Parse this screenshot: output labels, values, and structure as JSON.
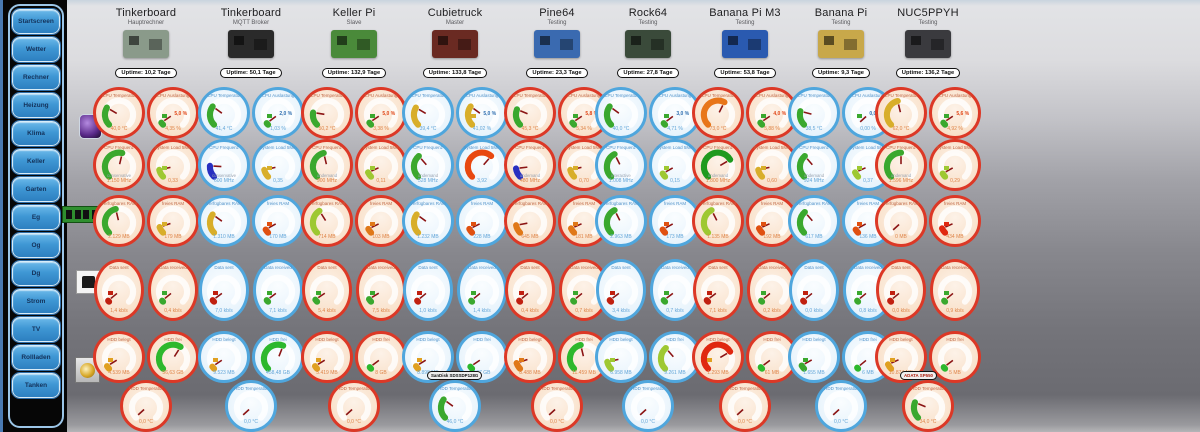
{
  "palette": {
    "accent_red": "#dc3826",
    "accent_blue": "#4fa6dd",
    "green": "#3aa82e",
    "yellowgreen": "#9ec832",
    "gold": "#d8ae2a",
    "orange": "#e07818",
    "orange_red": "#e84810",
    "red": "#e02810",
    "dark_blue": "#2830c0"
  },
  "sidebar": {
    "items": [
      "Startscreen",
      "Wetter",
      "Rechner",
      "Heizung",
      "Klima",
      "Keller",
      "Garten",
      "Eg",
      "Og",
      "Dg",
      "Strom",
      "TV",
      "Rollladen",
      "Tanken"
    ]
  },
  "left_icons": [
    {
      "name": "cpu-icon"
    },
    {
      "name": "ram-icon"
    },
    {
      "name": "network-icon"
    },
    {
      "name": "hdd-icon"
    }
  ],
  "columns": [
    {
      "name": "Tinkerboard",
      "subtitle": "Hauptrechner",
      "uptime": "Uptime: 10,2 Tage",
      "accent": "red",
      "board_color": "#8a9a8a",
      "badge": null,
      "gauges": [
        {
          "label": "CPU Temperatur",
          "value": "40,0 °C",
          "frac": 0.28,
          "color": "#3aa82e"
        },
        {
          "label": "CPU Auslastung",
          "mid": "5,0 %",
          "value": "4,35 %",
          "frac": 0.04,
          "color": "#3aa82e",
          "icon": "#3aa82e"
        },
        {
          "label": "CPU Frequenz",
          "sub": "conservative",
          "value": "1.150 MHz",
          "frac": 0.55,
          "color": "#3aa82e"
        },
        {
          "label": "System Load 5Min",
          "value": "0,33",
          "frac": 0.12,
          "color": "#9ec832",
          "icon": "#9ec832"
        },
        {
          "label": "Verfügbares RAM",
          "value": "2.129 MB",
          "frac": 0.45,
          "color": "#3aa82e"
        },
        {
          "label": "freies RAM",
          "value": "179 MB",
          "frac": 0.1,
          "color": "#d8ae2a",
          "icon": "#d8ae2a"
        },
        {
          "label": "Data sent",
          "value": "1,4 kb/s",
          "frac": 0.02,
          "color": "#c02010",
          "icon": "#c02010"
        },
        {
          "label": "Data received",
          "value": "0,4 kb/s",
          "frac": 0.02,
          "color": "#3aa82e",
          "icon": "#3aa82e"
        },
        {
          "label": "HDD belegt",
          "value": "4.539 MB",
          "frac": 0.05,
          "color": "#e0a020",
          "icon": "#e0a020"
        },
        {
          "label": "HDD frei",
          "value": "56,63 GB",
          "frac": 0.62,
          "color": "#2db82d"
        },
        {
          "label": "HDD Temperatur",
          "value": "0,0 °C",
          "frac": 0.01,
          "color": "#3aa82e"
        }
      ]
    },
    {
      "name": "Tinkerboard",
      "subtitle": "MQTT Broker",
      "uptime": "Uptime: 50,1 Tage",
      "accent": "blue",
      "board_color": "#2a2a2a",
      "badge": null,
      "gauges": [
        {
          "label": "CPU Temperatur",
          "value": "41,4 °C",
          "frac": 0.3,
          "color": "#3aa82e"
        },
        {
          "label": "CPU Auslastung",
          "mid": "2,0 %",
          "value": "1,03 %",
          "frac": 0.03,
          "color": "#3aa82e",
          "icon": "#3aa82e"
        },
        {
          "label": "CPU Frequenz",
          "sub": "conservative",
          "value": "600 MHz",
          "frac": 0.18,
          "color": "#2830c0"
        },
        {
          "label": "System Load 5Min",
          "value": "0,35",
          "frac": 0.12,
          "color": "#d8ae2a",
          "icon": "#d8ae2a"
        },
        {
          "label": "Verfügbares RAM",
          "value": "1.310 MB",
          "frac": 0.3,
          "color": "#d8ae2a"
        },
        {
          "label": "freies RAM",
          "value": "170 MB",
          "frac": 0.06,
          "color": "#e05010",
          "icon": "#e05010"
        },
        {
          "label": "Data sent",
          "value": "7,0 kb/s",
          "frac": 0.03,
          "color": "#c02010",
          "icon": "#c02010"
        },
        {
          "label": "Data received",
          "value": "7,1 kb/s",
          "frac": 0.03,
          "color": "#3aa82e",
          "icon": "#3aa82e"
        },
        {
          "label": "HDD belegt",
          "value": "9.523 MB",
          "frac": 0.04,
          "color": "#e0a020",
          "icon": "#e0a020"
        },
        {
          "label": "HDD frei",
          "value": "458,48 GB",
          "frac": 0.58,
          "color": "#2db82d"
        },
        {
          "label": "HDD Temperatur",
          "value": "0,0 °C",
          "frac": 0.01,
          "color": "#3aa82e"
        }
      ]
    },
    {
      "name": "Keller Pi",
      "subtitle": "Slave",
      "uptime": "Uptime: 132,9 Tage",
      "accent": "red",
      "board_color": "#4a8a3a",
      "badge": null,
      "gauges": [
        {
          "label": "CPU Temperatur",
          "value": "50,2 °C",
          "frac": 0.2,
          "color": "#3aa82e"
        },
        {
          "label": "CPU Auslastung",
          "mid": "5,0 %",
          "value": "3,38 %",
          "frac": 0.04,
          "color": "#3aa82e",
          "icon": "#3aa82e"
        },
        {
          "label": "CPU Frequenz",
          "sub": "ondemand",
          "value": "900 MHz",
          "frac": 0.45,
          "color": "#3aa82e"
        },
        {
          "label": "System Load 5Min",
          "value": "0,11",
          "frac": 0.08,
          "color": "#9ec832",
          "icon": "#9ec832"
        },
        {
          "label": "Verfügbares RAM",
          "value": "714 MB",
          "frac": 0.38,
          "color": "#9ec832"
        },
        {
          "label": "freies RAM",
          "value": "103 MB",
          "frac": 0.07,
          "color": "#e07818",
          "icon": "#e07818"
        },
        {
          "label": "Data sent",
          "value": "5,4 kb/s",
          "frac": 0.04,
          "color": "#3aa82e",
          "icon": "#3aa82e"
        },
        {
          "label": "Data received",
          "value": "7,5 kb/s",
          "frac": 0.05,
          "color": "#3aa82e",
          "icon": "#3aa82e"
        },
        {
          "label": "HDD belegt",
          "value": "5.419 MB",
          "frac": 0.05,
          "color": "#e0a020",
          "icon": "#e0a020"
        },
        {
          "label": "HDD frei",
          "value": "8 GB",
          "frac": 0.03,
          "color": "#2db82d"
        },
        {
          "label": "HDD Temperatur",
          "value": "0,0 °C",
          "frac": 0.01,
          "color": "#3aa82e"
        }
      ]
    },
    {
      "name": "Cubietruck",
      "subtitle": "Master",
      "uptime": "Uptime: 133,8 Tage",
      "accent": "blue",
      "board_color": "#6a2a22",
      "badge": "SanDisk SDSSDP128G",
      "gauges": [
        {
          "label": "CPU Temperatur",
          "value": "39,4 °C",
          "frac": 0.28,
          "color": "#d8ae2a"
        },
        {
          "label": "CPU Auslastung",
          "mid": "5,0 %",
          "value": "41,02 %",
          "frac": 0.3,
          "color": "#d8ae2a",
          "icon": "#d8ae2a"
        },
        {
          "label": "CPU Frequenz",
          "sub": "ondemand",
          "value": "528 MHz",
          "frac": 0.35,
          "color": "#3aa82e"
        },
        {
          "label": "System Load 5Min",
          "value": "3,92",
          "frac": 0.65,
          "color": "#e84810"
        },
        {
          "label": "Verfügbares RAM",
          "value": "1.232 MB",
          "frac": 0.3,
          "color": "#d8ae2a"
        },
        {
          "label": "freies RAM",
          "value": "228 MB",
          "frac": 0.07,
          "color": "#e05010",
          "icon": "#e05010"
        },
        {
          "label": "Data sent",
          "value": "1,0 kb/s",
          "frac": 0.02,
          "color": "#c02010",
          "icon": "#c02010"
        },
        {
          "label": "Data received",
          "value": "1,4 kb/s",
          "frac": 0.02,
          "color": "#3aa82e",
          "icon": "#3aa82e"
        },
        {
          "label": "HDD belegt",
          "value": "8.898 MB",
          "frac": 0.05,
          "color": "#e0a020",
          "icon": "#e0a020"
        },
        {
          "label": "HDD frei",
          "value": "107 GB",
          "frac": 0.04,
          "color": "#2db82d"
        },
        {
          "label": "HDD Temperatur",
          "value": "46,0 °C",
          "frac": 0.3,
          "color": "#3aa82e"
        }
      ]
    },
    {
      "name": "Pine64",
      "subtitle": "Testing",
      "uptime": "Uptime: 23,3 Tage",
      "accent": "red",
      "board_color": "#3a6ab0",
      "badge": null,
      "gauges": [
        {
          "label": "CPU Temperatur",
          "value": "45,3 °C",
          "frac": 0.25,
          "color": "#3aa82e"
        },
        {
          "label": "CPU Auslastung",
          "mid": "5,8 %",
          "value": "5,34 %",
          "frac": 0.04,
          "color": "#3aa82e",
          "icon": "#3aa82e"
        },
        {
          "label": "CPU Frequenz",
          "sub": "ondemand",
          "value": "480 MHz",
          "frac": 0.14,
          "color": "#2830c0"
        },
        {
          "label": "System Load 5Min",
          "value": "0,70",
          "frac": 0.12,
          "color": "#d8ae2a",
          "icon": "#d8ae2a"
        },
        {
          "label": "Verfügbares RAM",
          "value": "645 MB",
          "frac": 0.13,
          "color": "#e07818"
        },
        {
          "label": "freies RAM",
          "value": "181 MB",
          "frac": 0.08,
          "color": "#e07818",
          "icon": "#e07818"
        },
        {
          "label": "Data sent",
          "value": "0,4 kb/s",
          "frac": 0.02,
          "color": "#c02010",
          "icon": "#c02010"
        },
        {
          "label": "Data received",
          "value": "0,7 kb/s",
          "frac": 0.02,
          "color": "#3aa82e",
          "icon": "#3aa82e"
        },
        {
          "label": "HDD belegt",
          "value": "8.488 MB",
          "frac": 0.1,
          "color": "#e07818",
          "icon": "#e07818"
        },
        {
          "label": "HDD frei",
          "value": "11.459 MB",
          "frac": 0.45,
          "color": "#2db82d"
        },
        {
          "label": "HDD Temperatur",
          "value": "0,0 °C",
          "frac": 0.01,
          "color": "#3aa82e"
        }
      ]
    },
    {
      "name": "Rock64",
      "subtitle": "Testing",
      "uptime": "Uptime: 27,8 Tage",
      "accent": "blue",
      "board_color": "#3a4a3a",
      "badge": null,
      "gauges": [
        {
          "label": "CPU Temperatur",
          "value": "40,0 °C",
          "frac": 0.3,
          "color": "#3aa82e"
        },
        {
          "label": "CPU Auslastung",
          "mid": "3,0 %",
          "value": "4,71 %",
          "frac": 0.03,
          "color": "#3aa82e",
          "icon": "#3aa82e"
        },
        {
          "label": "CPU Frequenz",
          "sub": "interactive",
          "value": "1.008 MHz",
          "frac": 0.4,
          "color": "#3aa82e"
        },
        {
          "label": "System Load 5Min",
          "value": "0,15",
          "frac": 0.06,
          "color": "#9ec832",
          "icon": "#9ec832"
        },
        {
          "label": "Verfügbares RAM",
          "value": "2.963 MB",
          "frac": 0.4,
          "color": "#3aa82e"
        },
        {
          "label": "freies RAM",
          "value": "173 MB",
          "frac": 0.06,
          "color": "#e05010",
          "icon": "#e05010"
        },
        {
          "label": "Data sent",
          "value": "3,4 kb/s",
          "frac": 0.03,
          "color": "#c02010",
          "icon": "#c02010"
        },
        {
          "label": "Data received",
          "value": "0,7 kb/s",
          "frac": 0.03,
          "color": "#3aa82e",
          "icon": "#3aa82e"
        },
        {
          "label": "HDD belegt",
          "value": "6.958 MB",
          "frac": 0.12,
          "color": "#9ec832",
          "icon": "#9ec832"
        },
        {
          "label": "HDD frei",
          "value": "9.261 MB",
          "frac": 0.35,
          "color": "#9ec832"
        },
        {
          "label": "HDD Temperatur",
          "value": "0,0 °C",
          "frac": 0.01,
          "color": "#3aa82e"
        }
      ]
    },
    {
      "name": "Banana Pi M3",
      "subtitle": "Testing",
      "uptime": "Uptime: 53,8 Tage",
      "accent": "red",
      "board_color": "#2a5ab0",
      "badge": null,
      "gauges": [
        {
          "label": "CPU Temperatur",
          "value": "73,0 °C",
          "frac": 0.6,
          "color": "#e8761a"
        },
        {
          "label": "CPU Auslastung",
          "mid": "4,0 %",
          "value": "5,88 %",
          "frac": 0.04,
          "color": "#3aa82e",
          "icon": "#3aa82e"
        },
        {
          "label": "CPU Frequenz",
          "sub": "ondemand",
          "value": "1.800 MHz",
          "frac": 0.72,
          "color": "#1e9a1e"
        },
        {
          "label": "System Load 5Min",
          "value": "0,60",
          "frac": 0.12,
          "color": "#d8ae2a",
          "icon": "#d8ae2a"
        },
        {
          "label": "Verfügbares RAM",
          "value": "1.135 MB",
          "frac": 0.4,
          "color": "#9ec832"
        },
        {
          "label": "freies RAM",
          "value": "192 MB",
          "frac": 0.08,
          "color": "#e05010",
          "icon": "#e05010"
        },
        {
          "label": "Data sent",
          "value": "7,1 kb/s",
          "frac": 0.03,
          "color": "#c02010",
          "icon": "#c02010"
        },
        {
          "label": "Data received",
          "value": "0,2 kb/s",
          "frac": 0.02,
          "color": "#3aa82e",
          "icon": "#3aa82e"
        },
        {
          "label": "HDD belegt",
          "value": "1.293 MB",
          "frac": 0.72,
          "color": "#e02810",
          "icon": "#e0a020"
        },
        {
          "label": "HDD frei",
          "value": "61 MB",
          "frac": 0.03,
          "color": "#2db82d"
        },
        {
          "label": "HDD Temperatur",
          "value": "0,0 °C",
          "frac": 0.01,
          "color": "#3aa82e"
        }
      ]
    },
    {
      "name": "Banana Pi",
      "subtitle": "Testing",
      "uptime": "Uptime: 9,3 Tage",
      "accent": "blue",
      "board_color": "#c8a84a",
      "badge": null,
      "gauges": [
        {
          "label": "CPU Temperatur",
          "value": "38,5 °C",
          "frac": 0.22,
          "color": "#3aa82e"
        },
        {
          "label": "CPU Auslastung",
          "mid": "0,0 %",
          "value": "0,00 %",
          "frac": 0.01,
          "color": "#3aa82e",
          "icon": "#3aa82e"
        },
        {
          "label": "CPU Frequenz",
          "sub": "ondemand",
          "value": "924 MHz",
          "frac": 0.35,
          "color": "#3aa82e"
        },
        {
          "label": "System Load 5Min",
          "value": "0,37",
          "frac": 0.08,
          "color": "#9ec832",
          "icon": "#9ec832"
        },
        {
          "label": "Verfügbares RAM",
          "value": "617 MB",
          "frac": 0.35,
          "color": "#3aa82e"
        },
        {
          "label": "freies RAM",
          "value": "136 MB",
          "frac": 0.06,
          "color": "#e05010",
          "icon": "#e05010"
        },
        {
          "label": "Data sent",
          "value": "0,0 kb/s",
          "frac": 0.02,
          "color": "#c02010",
          "icon": "#c02010"
        },
        {
          "label": "Data received",
          "value": "0,8 kb/s",
          "frac": 0.02,
          "color": "#3aa82e",
          "icon": "#3aa82e"
        },
        {
          "label": "HDD belegt",
          "value": "1.655 MB",
          "frac": 0.06,
          "color": "#3aa82e",
          "icon": "#3aa82e"
        },
        {
          "label": "HDD frei",
          "value": "6 MB",
          "frac": 0.02,
          "color": "#2db82d"
        },
        {
          "label": "HDD Temperatur",
          "value": "0,0 °C",
          "frac": 0.01,
          "color": "#3aa82e"
        }
      ]
    },
    {
      "name": "NUC5PPYH",
      "subtitle": "Testing",
      "uptime": "Uptime: 136,2 Tage",
      "accent": "red",
      "board_color": "#3a3a3e",
      "badge": "ADATA SP550",
      "gauges": [
        {
          "label": "CPU Temperatur",
          "value": "62,0 °C",
          "frac": 0.45,
          "color": "#d8ae2a"
        },
        {
          "label": "CPU Auslastung",
          "mid": "5,6 %",
          "value": "4,92 %",
          "frac": 0.04,
          "color": "#3aa82e",
          "icon": "#3aa82e"
        },
        {
          "label": "CPU Frequenz",
          "sub": "ondemand",
          "value": "1.596 MHz",
          "frac": 0.5,
          "color": "#3aa82e"
        },
        {
          "label": "System Load 5Min",
          "value": "0,29",
          "frac": 0.06,
          "color": "#9ec832",
          "icon": "#9ec832"
        },
        {
          "label": "Verfügbares RAM",
          "value": "0 MB",
          "frac": 0.01,
          "color": "#3aa82e"
        },
        {
          "label": "freies RAM",
          "value": "434 MB",
          "frac": 0.08,
          "color": "#e02810",
          "icon": "#e02810"
        },
        {
          "label": "Data sent",
          "value": "0,0 kb/s",
          "frac": 0.02,
          "color": "#c02010",
          "icon": "#c02010"
        },
        {
          "label": "Data received",
          "value": "0,9 kb/s",
          "frac": 0.02,
          "color": "#3aa82e",
          "icon": "#3aa82e"
        },
        {
          "label": "HDD belegt",
          "value": "10.874 MB",
          "frac": 0.08,
          "color": "#e0a020",
          "icon": "#e0a020"
        },
        {
          "label": "HDD frei",
          "value": "5 MB",
          "frac": 0.03,
          "color": "#2db82d"
        },
        {
          "label": "HDD Temperatur",
          "value": "34,0 °C",
          "frac": 0.25,
          "color": "#3aa82e"
        }
      ]
    }
  ]
}
